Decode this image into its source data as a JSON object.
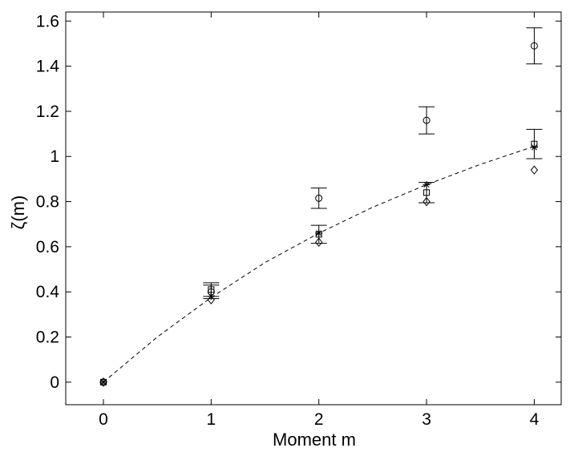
{
  "chart_data": {
    "type": "scatter",
    "title": "",
    "xlabel": "Moment m",
    "ylabel": "ζ(m)",
    "xlim": [
      -0.35,
      4.25
    ],
    "ylim": [
      -0.1,
      1.64
    ],
    "xticks": [
      0,
      1,
      2,
      3,
      4
    ],
    "yticks": [
      0,
      0.2,
      0.4,
      0.6,
      0.8,
      1,
      1.2,
      1.4,
      1.6
    ],
    "xtick_labels": [
      "0",
      "1",
      "2",
      "3",
      "4"
    ],
    "ytick_labels": [
      "0",
      "0.2",
      "0.4",
      "0.6",
      "0.8",
      "1",
      "1.2",
      "1.4",
      "1.6"
    ],
    "grid": false,
    "legend": null,
    "series": [
      {
        "marker": "circle",
        "x": [
          0,
          1,
          2,
          3,
          4
        ],
        "y": [
          0,
          0.4,
          0.815,
          1.16,
          1.49
        ],
        "error": [
          0.005,
          0.03,
          0.045,
          0.06,
          0.08
        ]
      },
      {
        "marker": "square",
        "x": [
          0,
          1,
          2,
          3,
          4
        ],
        "y": [
          0,
          0.41,
          0.655,
          0.84,
          1.055
        ],
        "error": [
          0.005,
          0.03,
          0.04,
          0.045,
          0.065
        ]
      },
      {
        "marker": "star",
        "x": [
          0,
          1,
          2,
          3,
          4
        ],
        "y": [
          0,
          0.38,
          0.66,
          0.875,
          1.04
        ],
        "error": null
      },
      {
        "marker": "diamond",
        "x": [
          0,
          1,
          2,
          3,
          4
        ],
        "y": [
          0,
          0.365,
          0.62,
          0.8,
          0.94
        ],
        "error": null
      }
    ],
    "reference_curve": {
      "style": "dashed",
      "x": [
        0,
        0.5,
        1,
        1.5,
        2,
        2.5,
        3,
        3.5,
        4
      ],
      "y": [
        0,
        0.2,
        0.375,
        0.53,
        0.66,
        0.775,
        0.875,
        0.965,
        1.045
      ]
    },
    "colors": {
      "axes": "#000000",
      "marks": "#000000",
      "background": "#ffffff"
    }
  }
}
